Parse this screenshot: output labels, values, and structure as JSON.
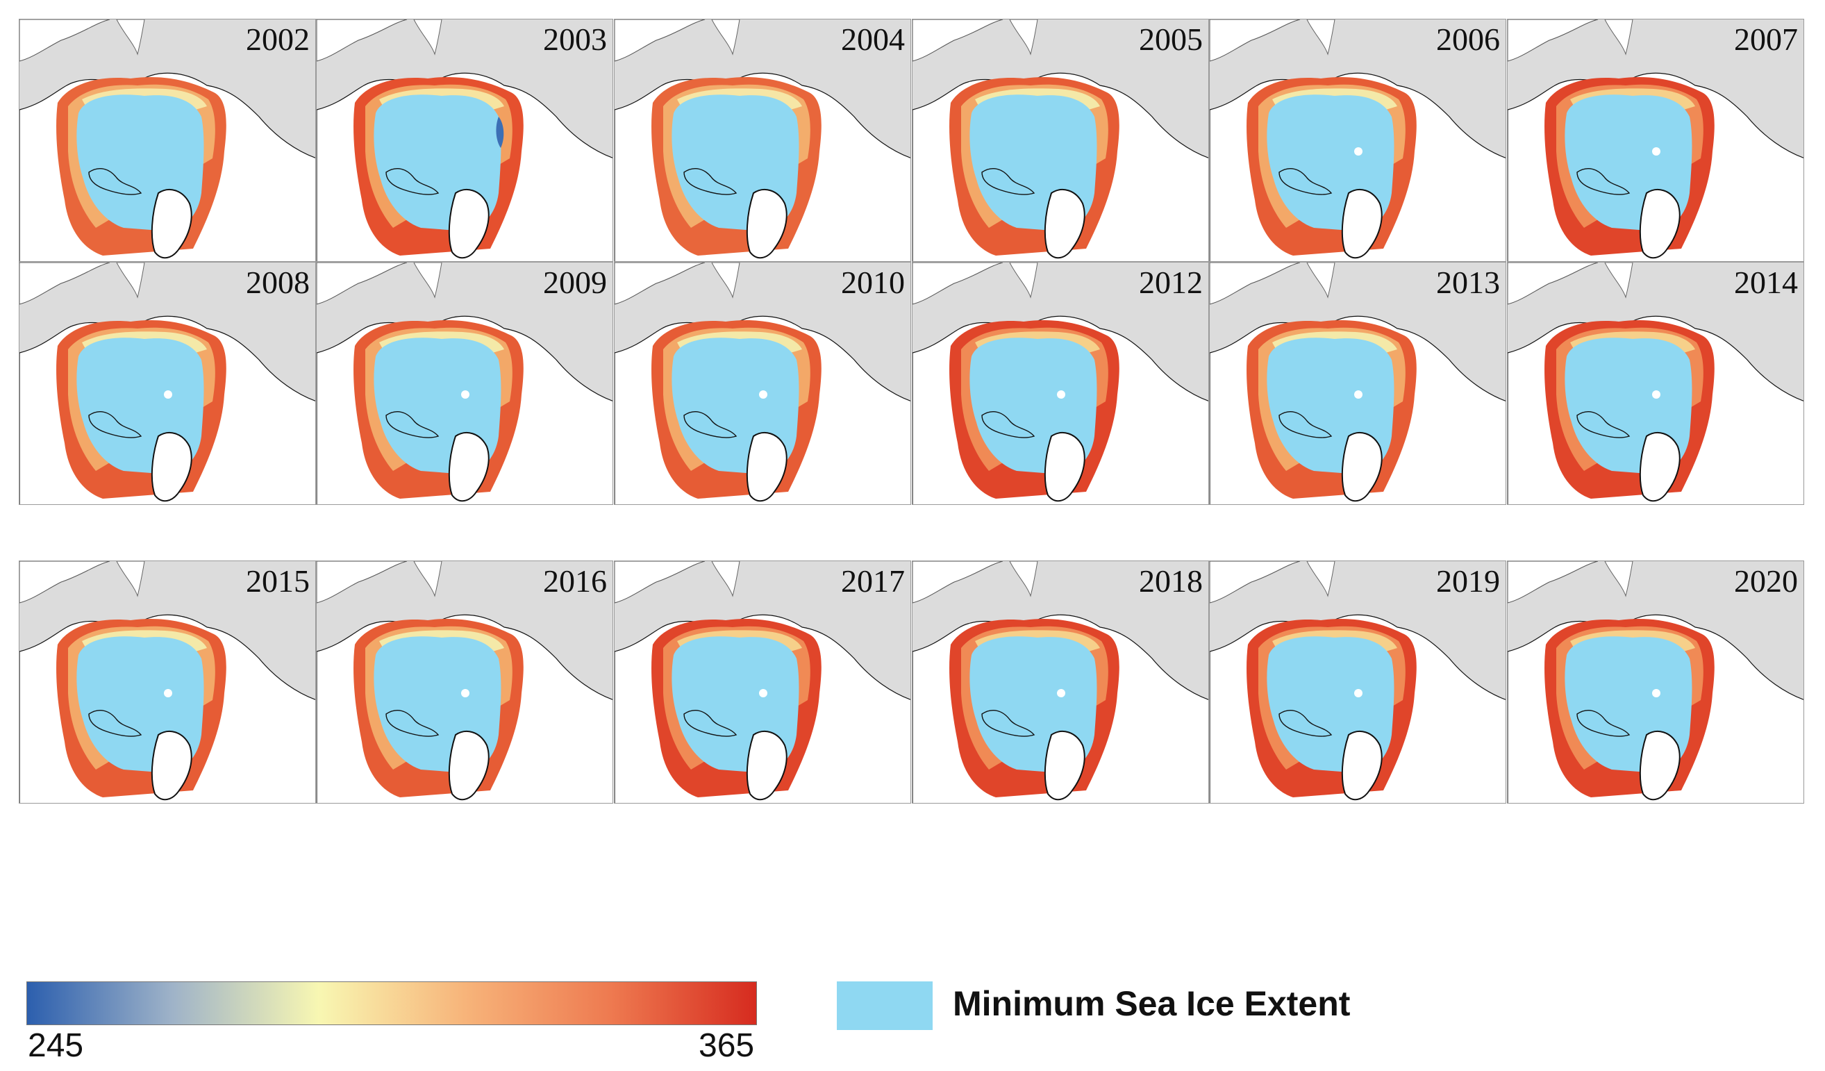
{
  "panels": [
    {
      "year": "2002",
      "variant": "red-low"
    },
    {
      "year": "2003",
      "variant": "blue-spots"
    },
    {
      "year": "2004",
      "variant": "red-low"
    },
    {
      "year": "2005",
      "variant": "mixed"
    },
    {
      "year": "2006",
      "variant": "mixed"
    },
    {
      "year": "2007",
      "variant": "red-high"
    },
    {
      "year": "2008",
      "variant": "mixed"
    },
    {
      "year": "2009",
      "variant": "mixed"
    },
    {
      "year": "2010",
      "variant": "mixed"
    },
    {
      "year": "2012",
      "variant": "red-high"
    },
    {
      "year": "2013",
      "variant": "mixed"
    },
    {
      "year": "2014",
      "variant": "red-high"
    },
    {
      "year": "2015",
      "variant": "mixed"
    },
    {
      "year": "2016",
      "variant": "mixed"
    },
    {
      "year": "2017",
      "variant": "red-high"
    },
    {
      "year": "2018",
      "variant": "red-high"
    },
    {
      "year": "2019",
      "variant": "red-high"
    },
    {
      "year": "2020",
      "variant": "red-high"
    }
  ],
  "legend": {
    "colorbar_min": "245",
    "colorbar_max": "365",
    "colorbar_colors": [
      "#2c5fae",
      "#9fb3c8",
      "#f8f7b2",
      "#f7b47a",
      "#ee7a50",
      "#d62b1f"
    ],
    "ice_label": "Minimum Sea Ice Extent",
    "ice_color": "#8fd8f2"
  },
  "colors": {
    "land": "#ffffff",
    "background": "#dcdcdc",
    "ice": "#8fd8f2",
    "coastline": "#111111"
  }
}
